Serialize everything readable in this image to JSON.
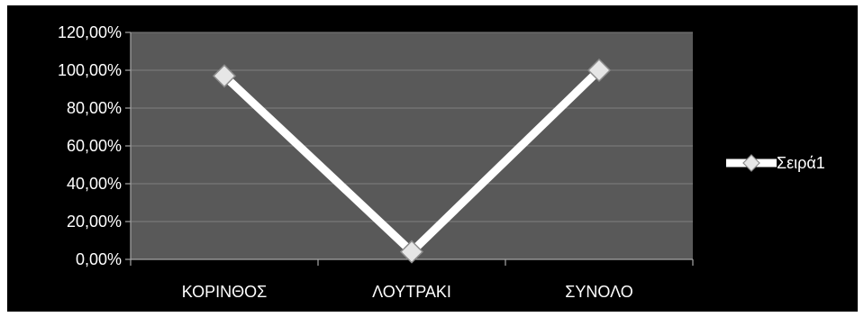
{
  "colors": {
    "background": "#000000",
    "plot_area": "#595959",
    "gridline": "#7f7f7f",
    "axis": "#a6a6a6",
    "series_line": "#ffffff",
    "marker_fill": "#e6e6e6",
    "marker_stroke": "#8c8c8c",
    "text": "#ffffff"
  },
  "chart_data": {
    "type": "line",
    "categories": [
      "ΚΟΡΙΝΘΟΣ",
      "ΛΟΥΤΡΑΚΙ",
      "ΣΥΝΟΛΟ"
    ],
    "series": [
      {
        "name": "Σειρά1",
        "values": [
          0.97,
          0.04,
          1.0
        ],
        "marker": "diamond"
      }
    ],
    "y_ticks": [
      0,
      0.2,
      0.4,
      0.6,
      0.8,
      1.0,
      1.2
    ],
    "y_tick_labels": [
      "0,00%",
      "20,00%",
      "40,00%",
      "60,00%",
      "80,00%",
      "100,00%",
      "120,00%"
    ],
    "ylim": [
      0,
      1.2
    ],
    "grid": true,
    "legend_position": "right"
  }
}
